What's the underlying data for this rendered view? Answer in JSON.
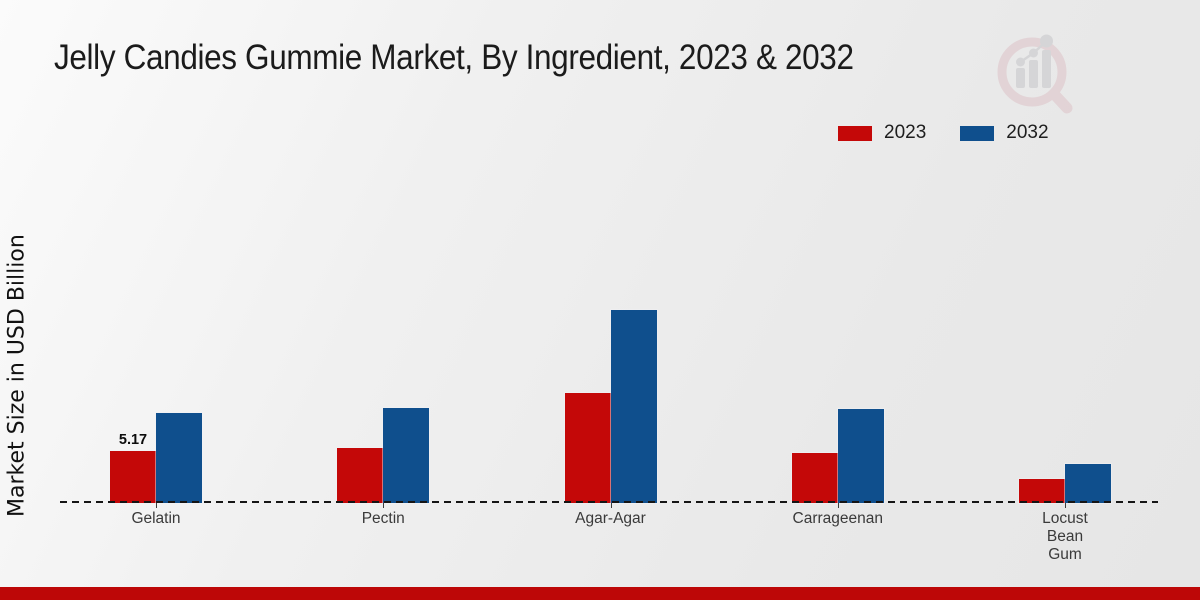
{
  "header": {
    "title": "Jelly Candies Gummie Market, By Ingredient, 2023 & 2032"
  },
  "axis": {
    "y_label": "Market Size in USD Billion"
  },
  "legend": {
    "items": [
      {
        "label": "2023",
        "color": "#c40808"
      },
      {
        "label": "2032",
        "color": "#0f4f8d"
      }
    ]
  },
  "chart_data": {
    "type": "bar",
    "title": "Jelly Candies Gummie Market, By Ingredient, 2023 & 2032",
    "xlabel": "",
    "ylabel": "Market Size in USD Billion",
    "categories": [
      "Gelatin",
      "Pectin",
      "Agar-Agar",
      "Carrageenan",
      "Locust Bean Gum"
    ],
    "series": [
      {
        "name": "2023",
        "color": "#c40808",
        "values": [
          5.17,
          5.55,
          11.05,
          5.05,
          2.37
        ]
      },
      {
        "name": "2032",
        "color": "#0f4f8d",
        "values": [
          9.0,
          9.5,
          19.3,
          9.45,
          3.9
        ]
      }
    ],
    "data_labels": [
      {
        "series": "2023",
        "category": "Gelatin",
        "text": "5.17"
      }
    ],
    "units": "USD Billion",
    "ylim": [
      0,
      20
    ],
    "grid": false,
    "y_ticks_visible": false,
    "legend_position": "top-right",
    "baseline_style": "dashed"
  },
  "branding": {
    "logo_name": "magnifier-bar-chart-watermark",
    "ring_color": "#dcbfc4",
    "bars_color": "#c3c3c7",
    "bottom_bar_color": "#bd0707"
  }
}
